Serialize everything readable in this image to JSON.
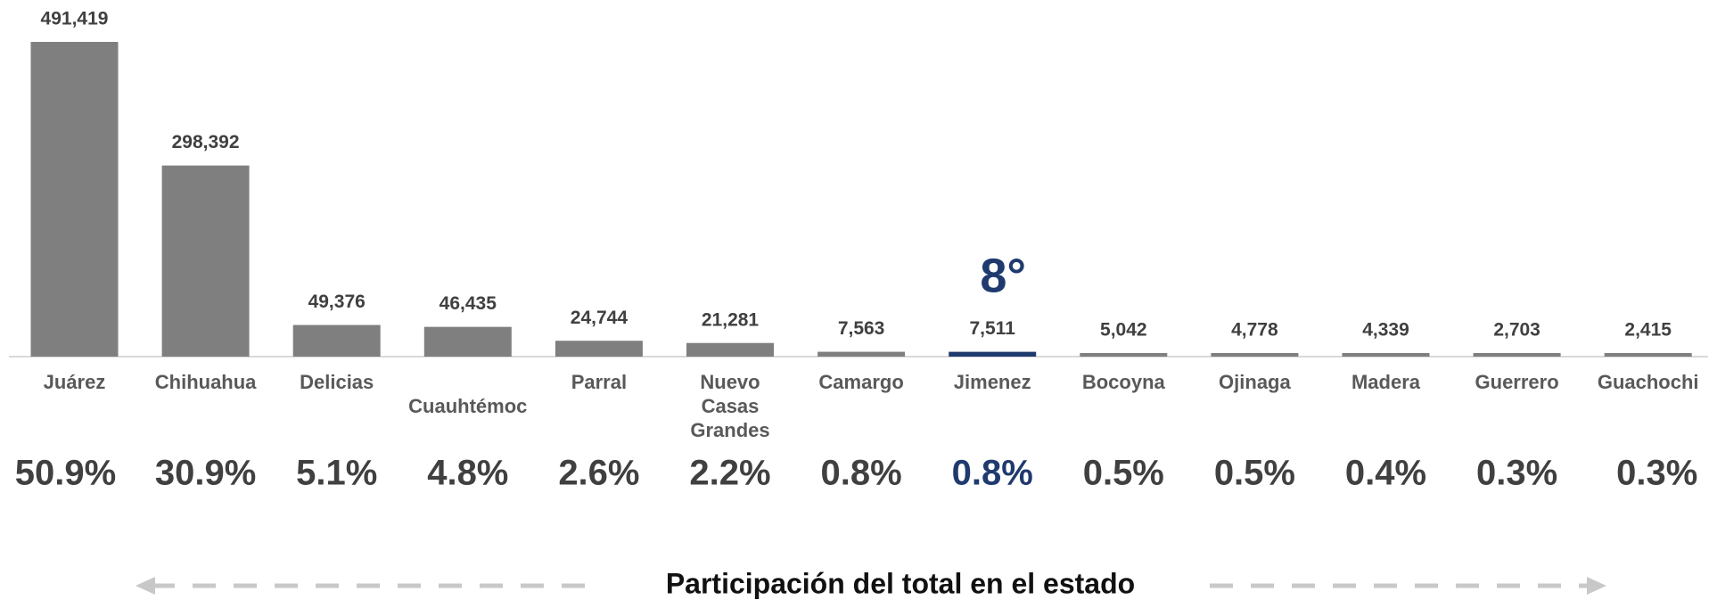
{
  "chart_data": {
    "type": "bar",
    "categories": [
      "Juárez",
      "Chihuahua",
      "Delicias",
      "Cuauhtémoc",
      "Parral",
      "Nuevo Casas Grandes",
      "Camargo",
      "Jimenez",
      "Bocoyna",
      "Ojinaga",
      "Madera",
      "Guerrero",
      "Guachochi"
    ],
    "values": [
      491419,
      298392,
      49376,
      46435,
      24744,
      21281,
      7563,
      7511,
      5042,
      4778,
      4339,
      2703,
      2415
    ],
    "value_labels": [
      "491,419",
      "298,392",
      "49,376",
      "46,435",
      "24,744",
      "21,281",
      "7,563",
      "7,511",
      "5,042",
      "4,778",
      "4,339",
      "2,703",
      "2,415"
    ],
    "colors": [
      "#7f7f7f",
      "#7f7f7f",
      "#7f7f7f",
      "#7f7f7f",
      "#7f7f7f",
      "#7f7f7f",
      "#7f7f7f",
      "#1f3a6e",
      "#7f7f7f",
      "#7f7f7f",
      "#7f7f7f",
      "#7f7f7f",
      "#7f7f7f"
    ],
    "shares": [
      "50.9%",
      "30.9%",
      "5.1%",
      "4.8%",
      "2.6%",
      "2.2%",
      "0.8%",
      "0.8%",
      "0.5%",
      "0.5%",
      "0.4%",
      "0.3%",
      "0.3%"
    ],
    "annotation": "8°",
    "footer": "Participación del total en el estado"
  }
}
